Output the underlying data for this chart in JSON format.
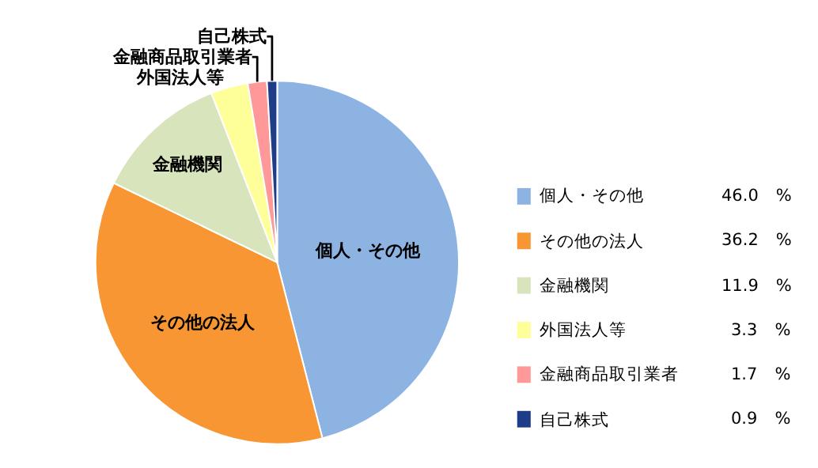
{
  "chart_data": {
    "type": "pie",
    "categories": [
      "個人・その他",
      "その他の法人",
      "金融機関",
      "外国法人等",
      "金融商品取引業者",
      "自己株式"
    ],
    "values": [
      46.0,
      36.2,
      11.9,
      3.3,
      1.7,
      0.9
    ],
    "colors": [
      "#8db3e2",
      "#f79632",
      "#d7e4bc",
      "#ffff99",
      "#ff9999",
      "#1f3c88"
    ],
    "value_labels": [
      "46.0　%",
      "36.2　%",
      "11.9　%",
      "3.3　%",
      "1.7　%",
      "0.9　%"
    ],
    "legend": "right"
  }
}
